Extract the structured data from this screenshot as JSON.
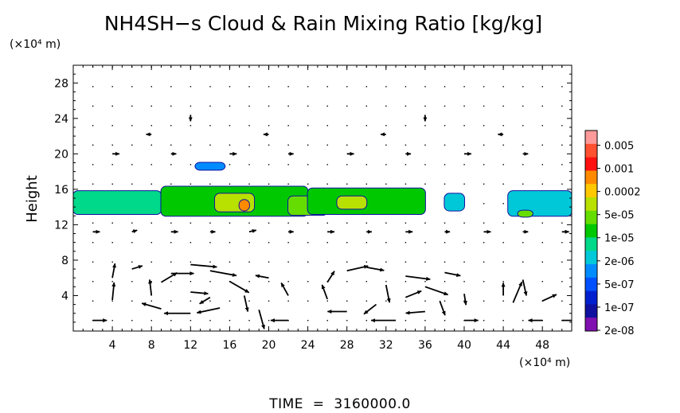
{
  "chart_data": {
    "type": "heatmap",
    "title": "NH4SH−s Cloud & Rain Mixing Ratio [kg/kg]",
    "ylabel": "Height",
    "x_units": "(×10⁴ m)",
    "y_units": "(×10⁴ m)",
    "xlim": [
      0,
      51
    ],
    "ylim": [
      0,
      30
    ],
    "x_ticks": [
      4,
      8,
      12,
      16,
      20,
      24,
      28,
      32,
      36,
      40,
      44,
      48
    ],
    "y_ticks": [
      4,
      8,
      12,
      16,
      20,
      24,
      28
    ],
    "footer": "TIME  =  3160000.0",
    "colorbar": {
      "labels": [
        "0.005",
        "0.001",
        "0.0002",
        "5e-05",
        "1e-05",
        "2e-06",
        "5e-07",
        "1e-07",
        "2e-08"
      ],
      "colors": [
        "#ff9a9a",
        "#ff5030",
        "#ff1010",
        "#ff8a00",
        "#ffc800",
        "#b8e000",
        "#66dd00",
        "#00c800",
        "#00d88a",
        "#00c8d8",
        "#008cff",
        "#0050ff",
        "#0020d0",
        "#1010a0",
        "#8010b0"
      ]
    },
    "cloud_blobs": [
      {
        "x": [
          0,
          9
        ],
        "y": [
          13.2,
          15.8
        ],
        "level": 6
      },
      {
        "x": [
          9,
          24
        ],
        "y": [
          13.0,
          16.3
        ],
        "level": 7
      },
      {
        "x": [
          14.5,
          18.5
        ],
        "y": [
          13.5,
          15.5
        ],
        "level": 9
      },
      {
        "x": [
          17,
          18
        ],
        "y": [
          13.6,
          14.8
        ],
        "level": 11
      },
      {
        "x": [
          22,
          26
        ],
        "y": [
          13.1,
          15.2
        ],
        "level": 8
      },
      {
        "x": [
          24,
          36
        ],
        "y": [
          13.2,
          16.1
        ],
        "level": 7
      },
      {
        "x": [
          27,
          30
        ],
        "y": [
          13.8,
          15.2
        ],
        "level": 9
      },
      {
        "x": [
          12.5,
          15.5
        ],
        "y": [
          18.2,
          19.0
        ],
        "level": 4
      },
      {
        "x": [
          38,
          40
        ],
        "y": [
          13.6,
          15.5
        ],
        "level": 5
      },
      {
        "x": [
          44.5,
          51
        ],
        "y": [
          13.0,
          15.8
        ],
        "level": 5
      },
      {
        "x": [
          45.5,
          47
        ],
        "y": [
          12.9,
          13.6
        ],
        "level": 8
      }
    ],
    "wind_vectors": [
      {
        "x": 10,
        "y": 6.5,
        "u": 2.6,
        "v": 0.0
      },
      {
        "x": 12,
        "y": 7.5,
        "u": 3.0,
        "v": -0.3
      },
      {
        "x": 14,
        "y": 6.8,
        "u": 3.0,
        "v": -0.6
      },
      {
        "x": 16,
        "y": 5.6,
        "u": 2.2,
        "v": -1.4
      },
      {
        "x": 17.5,
        "y": 4.0,
        "u": 0.4,
        "v": -2.0
      },
      {
        "x": 15,
        "y": 2.6,
        "u": -2.6,
        "v": -0.6
      },
      {
        "x": 12,
        "y": 2.0,
        "u": -3.0,
        "v": 0.0
      },
      {
        "x": 9,
        "y": 2.5,
        "u": -2.2,
        "v": 0.7
      },
      {
        "x": 8,
        "y": 4.0,
        "u": -0.2,
        "v": 2.0
      },
      {
        "x": 9,
        "y": 5.5,
        "u": 1.8,
        "v": 1.2
      },
      {
        "x": 12,
        "y": 4.4,
        "u": 2.0,
        "v": -0.2
      },
      {
        "x": 14,
        "y": 3.8,
        "u": -1.2,
        "v": -0.8
      },
      {
        "x": 4,
        "y": 3.5,
        "u": 0.2,
        "v": 2.2
      },
      {
        "x": 4,
        "y": 6.0,
        "u": 0.3,
        "v": 1.8
      },
      {
        "x": 2,
        "y": 1.2,
        "u": 1.6,
        "v": 0.0
      },
      {
        "x": 20,
        "y": 6.0,
        "u": -1.5,
        "v": 0.3
      },
      {
        "x": 19,
        "y": 2.4,
        "u": 0.6,
        "v": -2.4
      },
      {
        "x": 28,
        "y": 6.8,
        "u": 2.4,
        "v": 0.6
      },
      {
        "x": 30,
        "y": 7.2,
        "u": 2.0,
        "v": -0.4
      },
      {
        "x": 32,
        "y": 5.2,
        "u": 0.4,
        "v": -2.2
      },
      {
        "x": 31,
        "y": 3.0,
        "u": -1.4,
        "v": -1.2
      },
      {
        "x": 28,
        "y": 2.2,
        "u": -2.2,
        "v": 0.0
      },
      {
        "x": 26,
        "y": 3.6,
        "u": -0.6,
        "v": 1.8
      },
      {
        "x": 26,
        "y": 5.5,
        "u": 0.8,
        "v": 1.4
      },
      {
        "x": 34,
        "y": 6.2,
        "u": 2.8,
        "v": -0.4
      },
      {
        "x": 36,
        "y": 5.0,
        "u": 2.6,
        "v": -1.0
      },
      {
        "x": 37.5,
        "y": 3.4,
        "u": 0.6,
        "v": -1.8
      },
      {
        "x": 36,
        "y": 2.2,
        "u": -2.2,
        "v": -0.2
      },
      {
        "x": 33,
        "y": 1.2,
        "u": -2.8,
        "v": 0.0
      },
      {
        "x": 34,
        "y": 3.8,
        "u": 1.8,
        "v": 0.8
      },
      {
        "x": 38,
        "y": 6.6,
        "u": 1.8,
        "v": -0.4
      },
      {
        "x": 45,
        "y": 3.2,
        "u": 1.0,
        "v": 2.6
      },
      {
        "x": 46,
        "y": 5.8,
        "u": 0.4,
        "v": -2.0
      },
      {
        "x": 44,
        "y": 4.0,
        "u": 0.0,
        "v": 1.6
      },
      {
        "x": 48,
        "y": 3.4,
        "u": 1.6,
        "v": 0.8
      },
      {
        "x": 50,
        "y": 1.2,
        "u": 1.8,
        "v": 0.0
      },
      {
        "x": 48,
        "y": 1.2,
        "u": -1.6,
        "v": 0.0
      },
      {
        "x": 22,
        "y": 1.2,
        "u": -2.0,
        "v": 0.0
      },
      {
        "x": 40,
        "y": 1.2,
        "u": 1.6,
        "v": 0.0
      },
      {
        "x": 6,
        "y": 7.0,
        "u": 1.2,
        "v": 0.4
      },
      {
        "x": 22,
        "y": 4.0,
        "u": -0.8,
        "v": 1.6
      },
      {
        "x": 40,
        "y": 4.2,
        "u": 0.2,
        "v": -1.4
      },
      {
        "x": 2,
        "y": 11.2,
        "u": 0.8,
        "v": 0.0
      },
      {
        "x": 6,
        "y": 11.2,
        "u": 0.6,
        "v": 0.2
      },
      {
        "x": 10,
        "y": 11.2,
        "u": 0.8,
        "v": 0.0
      },
      {
        "x": 14,
        "y": 11.2,
        "u": 0.6,
        "v": 0.0
      },
      {
        "x": 18,
        "y": 11.2,
        "u": 0.8,
        "v": 0.2
      },
      {
        "x": 22,
        "y": 11.2,
        "u": 0.6,
        "v": 0.0
      },
      {
        "x": 26,
        "y": 11.2,
        "u": 0.8,
        "v": 0.0
      },
      {
        "x": 30,
        "y": 11.2,
        "u": 0.6,
        "v": 0.0
      },
      {
        "x": 34,
        "y": 11.2,
        "u": 0.8,
        "v": 0.0
      },
      {
        "x": 38,
        "y": 11.2,
        "u": 0.6,
        "v": 0.0
      },
      {
        "x": 42,
        "y": 11.2,
        "u": 0.8,
        "v": 0.0
      },
      {
        "x": 46,
        "y": 11.2,
        "u": 0.6,
        "v": 0.0
      },
      {
        "x": 50,
        "y": 11.2,
        "u": 0.8,
        "v": 0.0
      },
      {
        "x": 4,
        "y": 20.0,
        "u": 0.8,
        "v": 0.0
      },
      {
        "x": 10,
        "y": 20.0,
        "u": 0.6,
        "v": 0.0
      },
      {
        "x": 16,
        "y": 20.0,
        "u": 0.8,
        "v": 0.0
      },
      {
        "x": 22,
        "y": 20.0,
        "u": 0.6,
        "v": 0.0
      },
      {
        "x": 28,
        "y": 20.0,
        "u": 0.8,
        "v": 0.0
      },
      {
        "x": 34,
        "y": 20.0,
        "u": 0.6,
        "v": 0.0
      },
      {
        "x": 40,
        "y": 20.0,
        "u": 0.8,
        "v": 0.0
      },
      {
        "x": 46,
        "y": 20.0,
        "u": 0.6,
        "v": 0.0
      },
      {
        "x": 8,
        "y": 22.2,
        "u": -0.6,
        "v": 0.0
      },
      {
        "x": 20,
        "y": 22.2,
        "u": -0.6,
        "v": 0.0
      },
      {
        "x": 32,
        "y": 22.2,
        "u": -0.6,
        "v": 0.0
      },
      {
        "x": 44,
        "y": 22.2,
        "u": -0.6,
        "v": 0.0
      },
      {
        "x": 12,
        "y": 24.4,
        "u": 0.0,
        "v": -0.8
      },
      {
        "x": 36,
        "y": 24.4,
        "u": 0.0,
        "v": -0.8
      }
    ]
  }
}
